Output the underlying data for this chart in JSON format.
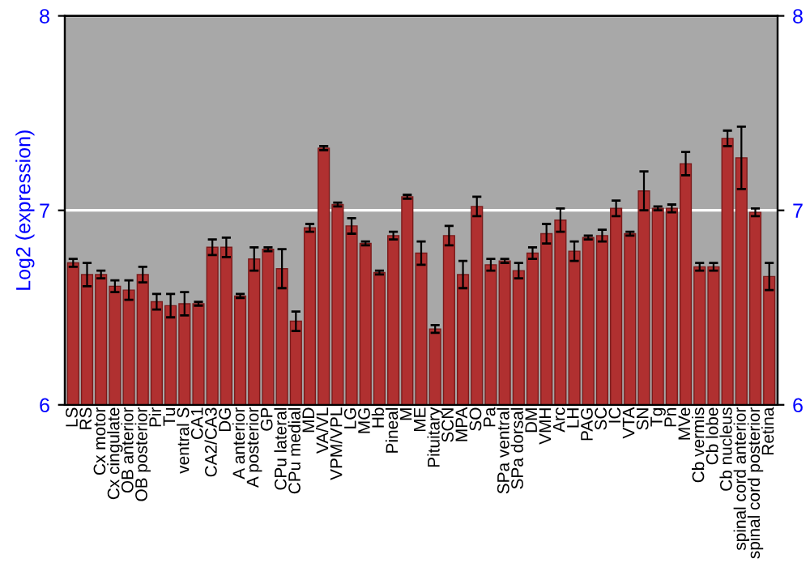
{
  "chart_data": {
    "type": "bar",
    "ylabel": "Log2 (expression)",
    "categories": [
      "LS",
      "RS",
      "Cx motor",
      "Cx cingulate",
      "OB anterior",
      "OB posterior",
      "Pir",
      "Tu",
      "ventral S",
      "CA1",
      "CA2/CA3",
      "DG",
      "A anterior",
      "A posterior",
      "GP",
      "CPu lateral",
      "CPu medial",
      "MD",
      "VA/VL",
      "VPM/VPL",
      "LG",
      "MG",
      "Hb",
      "Pineal",
      "M",
      "ME",
      "Pituitary",
      "SCN",
      "MPA",
      "SO",
      "Pa",
      "SPa ventral",
      "SPa dorsal",
      "DM",
      "VMH",
      "Arc",
      "LH",
      "PAG",
      "SC",
      "IC",
      "VTA",
      "SN",
      "Tg",
      "Pn",
      "MVe",
      "Cb vermis",
      "Cb lobe",
      "Cb nucleus",
      "spinal cord anterior",
      "spinal cord posterior",
      "Retina"
    ],
    "series": [
      {
        "color": "#b03030",
        "values": [
          6.73,
          6.67,
          6.67,
          6.61,
          6.59,
          6.67,
          6.53,
          6.51,
          6.52,
          6.52,
          6.81,
          6.81,
          6.56,
          6.75,
          6.8,
          6.7,
          6.43,
          6.91,
          7.32,
          7.03,
          6.92,
          6.83,
          6.68,
          6.87,
          7.07,
          6.78,
          6.39,
          6.87,
          6.67,
          7.02,
          6.72,
          6.74,
          6.69,
          6.78,
          6.88,
          6.95,
          6.79,
          6.86,
          6.87,
          7.01,
          6.88,
          7.1,
          7.01,
          7.01,
          7.24,
          6.71,
          6.71,
          7.37,
          7.27,
          6.99,
          6.66
        ],
        "errors": [
          0.02,
          0.06,
          0.02,
          0.03,
          0.05,
          0.04,
          0.04,
          0.06,
          0.06,
          0.01,
          0.04,
          0.05,
          0.01,
          0.06,
          0.01,
          0.1,
          0.05,
          0.02,
          0.01,
          0.01,
          0.04,
          0.01,
          0.01,
          0.02,
          0.01,
          0.06,
          0.02,
          0.05,
          0.07,
          0.05,
          0.03,
          0.01,
          0.04,
          0.03,
          0.05,
          0.06,
          0.05,
          0.01,
          0.03,
          0.04,
          0.01,
          0.1,
          0.01,
          0.02,
          0.06,
          0.02,
          0.02,
          0.04,
          0.16,
          0.02,
          0.07
        ]
      }
    ],
    "ylim": [
      6,
      8
    ],
    "yticks": [
      6,
      7,
      8
    ],
    "y2lim": [
      6,
      8
    ],
    "y2ticks": [
      6,
      7,
      8
    ],
    "grid": "y",
    "legend": false
  }
}
